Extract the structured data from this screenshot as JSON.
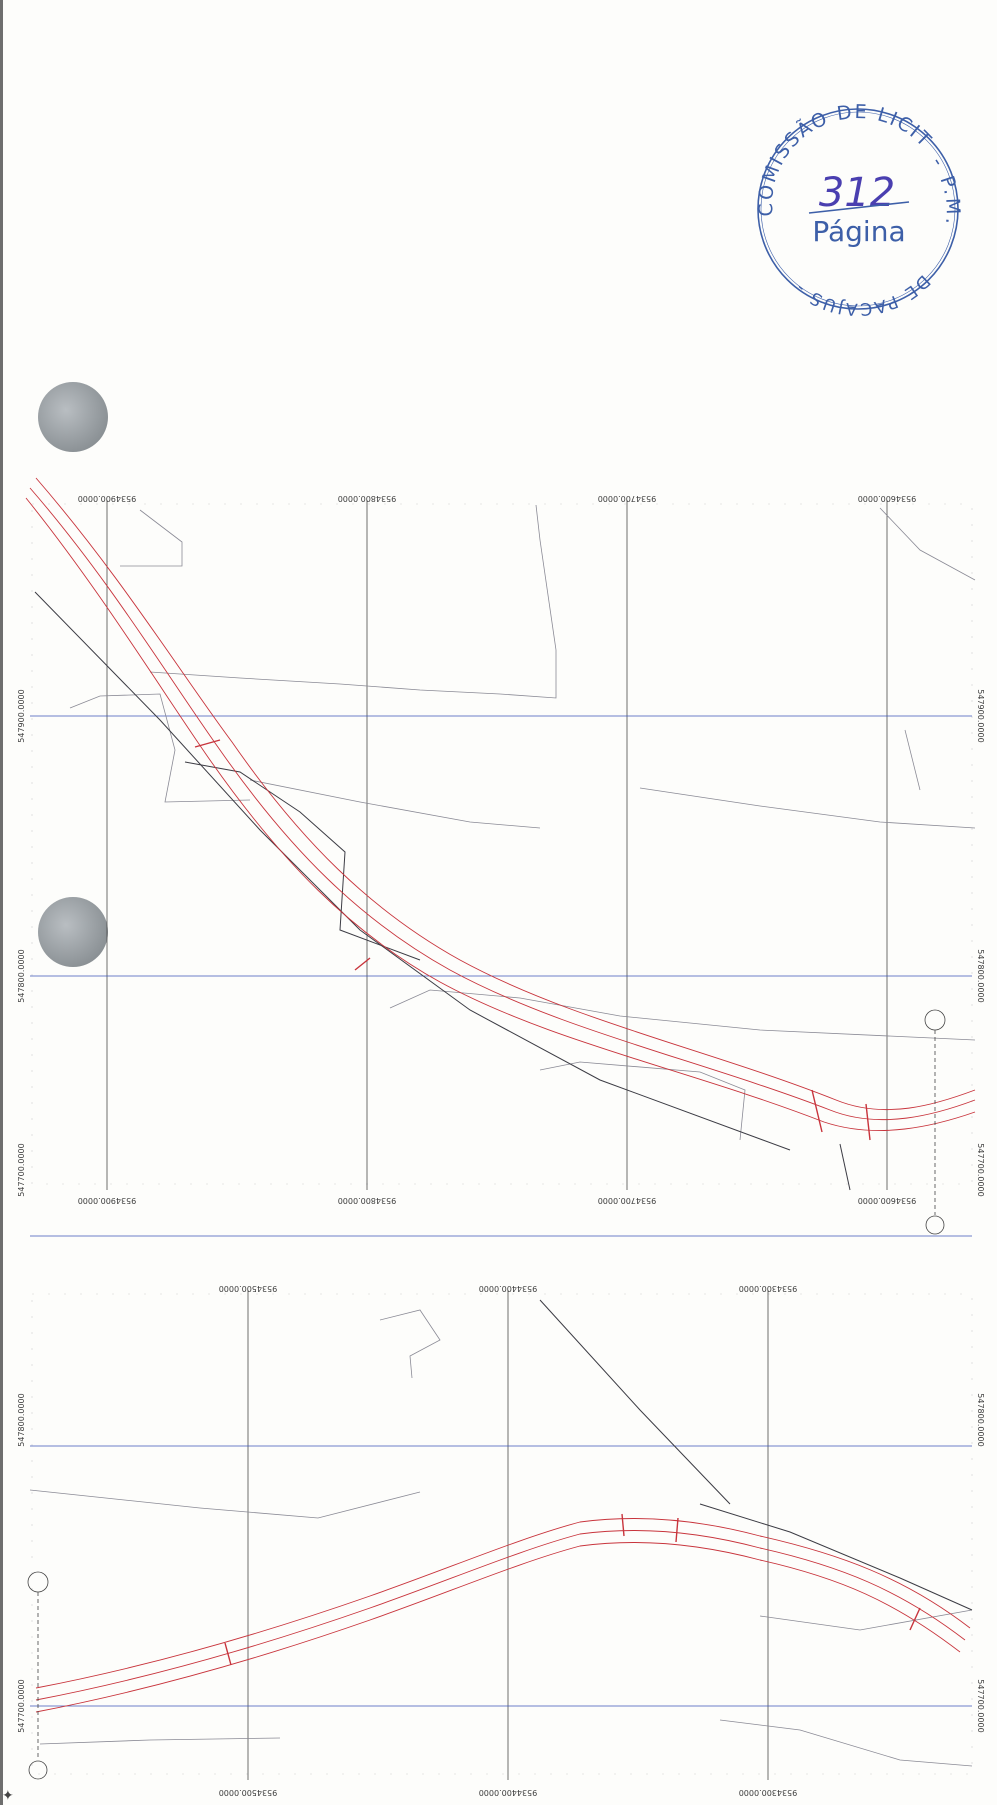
{
  "stamp": {
    "ring_top_text": "COMISSÃO DE LICITAÇÃO",
    "ring_right_text": "- P.M.",
    "ring_bottom_text": "DE PACAJUS -",
    "page_number": "312",
    "page_label": "Página",
    "ink_color": "#3d5fa8",
    "handwriting_color": "#4a3fb0"
  },
  "maps": [
    {
      "vertical_gridlines": [
        {
          "label_top": "9534900.0000",
          "label_bottom": "9534900.0000"
        },
        {
          "label_top": "9534800.0000",
          "label_bottom": "9534800.0000"
        },
        {
          "label_top": "9534700.0000",
          "label_bottom": "9534700.0000"
        },
        {
          "label_top": "9534600.0000",
          "label_bottom": "9534600.0000"
        }
      ],
      "horizontal_gridlines": [
        {
          "label_left": "547900.0000",
          "label_right": "547900.0000"
        },
        {
          "label_left": "547800.0000",
          "label_right": "547800.0000"
        },
        {
          "label_left": "547700.0000",
          "label_right": "547700.0000"
        }
      ]
    },
    {
      "vertical_gridlines": [
        {
          "label_top": "9534500.0000",
          "label_bottom": "9534500.0000"
        },
        {
          "label_top": "9534400.0000",
          "label_bottom": "9534400.0000"
        },
        {
          "label_top": "9534300.0000",
          "label_bottom": "9534300.0000"
        }
      ],
      "horizontal_gridlines": [
        {
          "label_left": "547800.0000",
          "label_right": "547800.0000"
        },
        {
          "label_left": "547700.0000",
          "label_right": "547700.0000"
        }
      ]
    }
  ],
  "colors": {
    "road_alignment": "#c8343c",
    "grid_vertical": "#4a4a4a",
    "grid_horizontal": "#3d56b8",
    "terrain_lines": "#8a8a95"
  }
}
